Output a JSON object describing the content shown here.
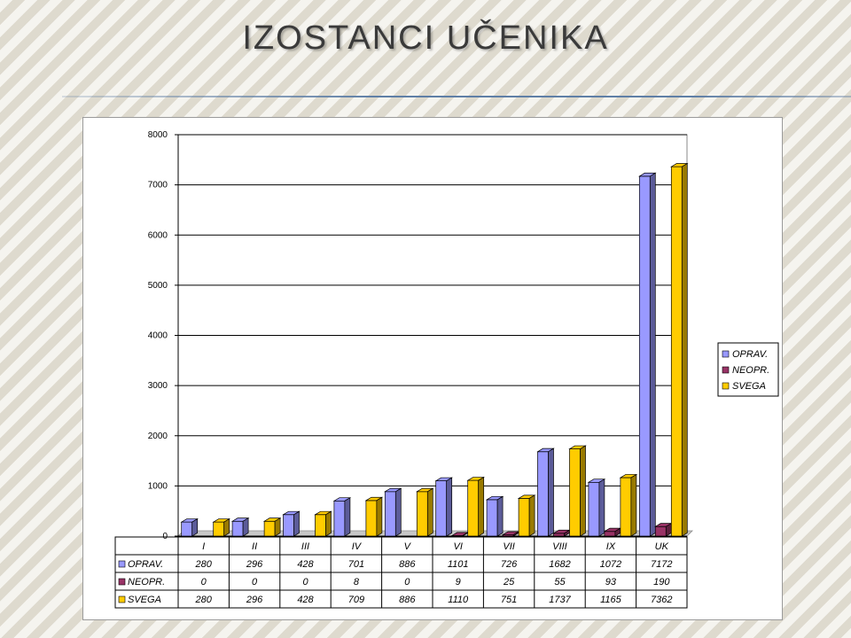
{
  "slide": {
    "title": "IZOSTANCI UČENIKA"
  },
  "chart_data": {
    "type": "bar",
    "categories": [
      "I",
      "II",
      "III",
      "IV",
      "V",
      "VI",
      "VII",
      "VIII",
      "IX",
      "UK"
    ],
    "series": [
      {
        "name": "OPRAV.",
        "color": "#9999ff",
        "values": [
          280,
          296,
          428,
          701,
          886,
          1101,
          726,
          1682,
          1072,
          7172
        ]
      },
      {
        "name": "NEOPR.",
        "color": "#993366",
        "values": [
          0,
          0,
          0,
          8,
          0,
          9,
          25,
          55,
          93,
          190
        ]
      },
      {
        "name": "SVEGA",
        "color": "#ffcc00",
        "values": [
          280,
          296,
          428,
          709,
          886,
          1110,
          751,
          1737,
          1165,
          7362
        ]
      }
    ],
    "yticks": [
      0,
      1000,
      2000,
      3000,
      4000,
      5000,
      6000,
      7000,
      8000
    ],
    "ylim": [
      0,
      8000
    ],
    "grid": true,
    "legend": "right",
    "data_table": true
  }
}
